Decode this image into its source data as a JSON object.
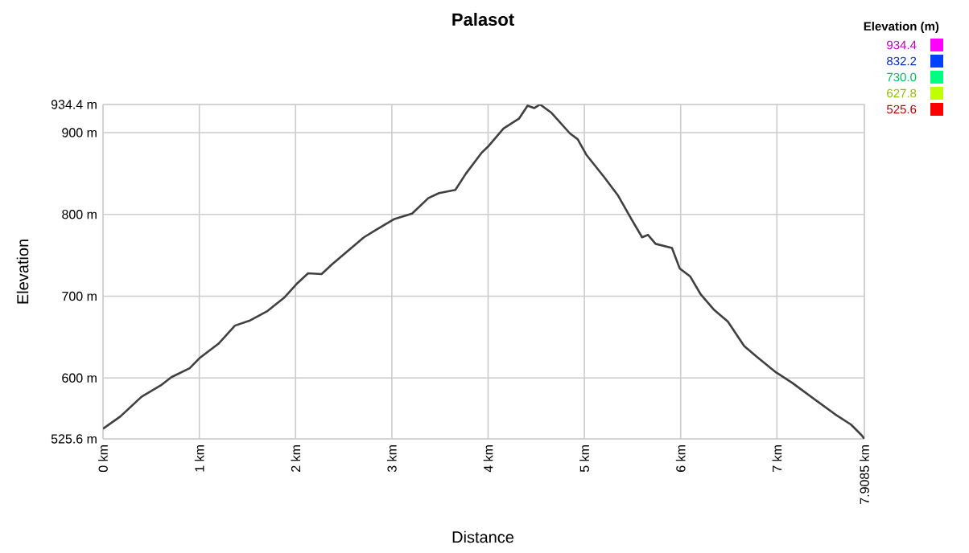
{
  "chart_data": {
    "type": "line",
    "title": "Palasot",
    "xlabel": "Distance",
    "ylabel": "Elevation",
    "clabel": "Elevation (m)",
    "x": [
      0,
      0.18,
      0.4,
      0.6,
      0.71,
      0.9,
      1.0,
      1.2,
      1.37,
      1.52,
      1.71,
      1.88,
      2.02,
      2.13,
      2.27,
      2.38,
      2.52,
      2.71,
      2.82,
      3.02,
      3.21,
      3.38,
      3.49,
      3.66,
      3.77,
      3.93,
      4.0,
      4.16,
      4.32,
      4.41,
      4.48,
      4.54,
      4.66,
      4.85,
      4.93,
      5.02,
      5.21,
      5.35,
      5.49,
      5.6,
      5.66,
      5.74,
      5.91,
      5.99,
      6.1,
      6.21,
      6.35,
      6.49,
      6.66,
      6.79,
      6.99,
      7.16,
      7.38,
      7.6,
      7.77,
      7.88,
      7.9085
    ],
    "values": [
      538,
      553,
      577,
      591,
      601,
      612,
      624,
      642,
      664,
      670,
      682,
      698,
      716,
      728,
      727,
      739,
      753,
      772,
      780,
      794,
      801,
      820,
      826,
      830,
      850,
      875,
      883,
      905,
      917,
      933,
      930,
      934.4,
      924,
      899,
      892,
      873,
      845,
      823,
      794,
      772,
      775,
      764,
      759,
      734,
      724,
      702,
      683,
      669,
      639,
      626,
      607,
      594,
      575,
      556,
      543,
      530,
      525.6
    ],
    "xlim": [
      0,
      7.9085
    ],
    "ylim": [
      525.6,
      934.4
    ],
    "xticks": [
      {
        "value": 0,
        "label": "0 km"
      },
      {
        "value": 1,
        "label": "1 km"
      },
      {
        "value": 2,
        "label": "2 km"
      },
      {
        "value": 3,
        "label": "3 km"
      },
      {
        "value": 4,
        "label": "4 km"
      },
      {
        "value": 5,
        "label": "5 km"
      },
      {
        "value": 6,
        "label": "6 km"
      },
      {
        "value": 7,
        "label": "7 km"
      },
      {
        "value": 7.9085,
        "label": "7.9085 km"
      }
    ],
    "yticks": [
      {
        "value": 525.6,
        "label": "525.6 m"
      },
      {
        "value": 600,
        "label": "600 m"
      },
      {
        "value": 700,
        "label": "700 m"
      },
      {
        "value": 800,
        "label": "800 m"
      },
      {
        "value": 900,
        "label": "900 m"
      },
      {
        "value": 934.4,
        "label": "934.4 m"
      }
    ],
    "clim": [
      525.6,
      934.4
    ],
    "cticks": [
      934.4,
      832.2,
      {
        "value": 730,
        "label": "730.0"
      },
      627.8,
      525.6
    ],
    "grid": true
  }
}
